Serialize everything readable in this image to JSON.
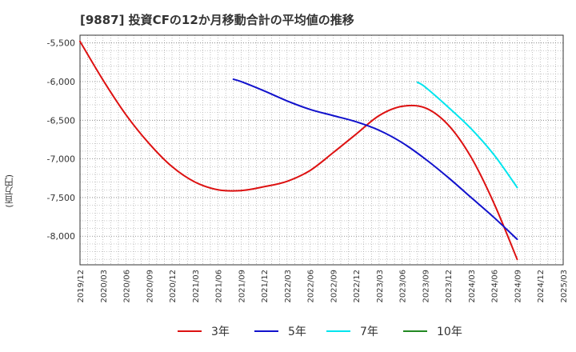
{
  "chart_data": {
    "type": "line",
    "title": "[9887]  投資CFの12か月移動合計の平均値の推移",
    "ylabel": "(百万円)",
    "xlabel": "",
    "ylim": [
      -8370,
      -5400
    ],
    "yticks": [
      -5500,
      -6000,
      -6500,
      -7000,
      -7500,
      -8000
    ],
    "ytick_labels": [
      "-5,500",
      "-6,000",
      "-6,500",
      "-7,000",
      "-7,500",
      "-8,000"
    ],
    "x_tick_labels": [
      "2019/12",
      "2020/03",
      "2020/06",
      "2020/09",
      "2020/12",
      "2021/03",
      "2021/06",
      "2021/09",
      "2021/12",
      "2022/03",
      "2022/06",
      "2022/09",
      "2022/12",
      "2023/03",
      "2023/06",
      "2023/09",
      "2023/12",
      "2024/03",
      "2024/06",
      "2024/09",
      "2024/12",
      "2025/03"
    ],
    "grid": true,
    "legend_position": "bottom",
    "series": [
      {
        "name": "3年",
        "color": "#dd1111",
        "x": [
          "2019/12",
          "2020/03",
          "2020/06",
          "2020/09",
          "2020/12",
          "2021/03",
          "2021/06",
          "2021/09",
          "2021/12",
          "2022/03",
          "2022/06",
          "2022/09",
          "2022/12",
          "2023/03",
          "2023/06",
          "2023/09",
          "2023/12",
          "2024/03",
          "2024/06",
          "2024/09"
        ],
        "values": [
          -5480,
          -5980,
          -6430,
          -6800,
          -7100,
          -7300,
          -7400,
          -7410,
          -7360,
          -7290,
          -7150,
          -6920,
          -6680,
          -6440,
          -6320,
          -6340,
          -6560,
          -6980,
          -7580,
          -8300
        ]
      },
      {
        "name": "5年",
        "color": "#1111cc",
        "x": [
          "2021/08",
          "2021/09",
          "2021/12",
          "2022/03",
          "2022/06",
          "2022/09",
          "2022/12",
          "2023/03",
          "2023/06",
          "2023/09",
          "2023/12",
          "2024/03",
          "2024/06",
          "2024/09"
        ],
        "values": [
          -5970,
          -6000,
          -6120,
          -6250,
          -6360,
          -6440,
          -6520,
          -6630,
          -6790,
          -7000,
          -7240,
          -7500,
          -7760,
          -8040
        ]
      },
      {
        "name": "7年",
        "color": "#00e5ee",
        "x": [
          "2023/08",
          "2023/09",
          "2023/12",
          "2024/03",
          "2024/06",
          "2024/09"
        ],
        "values": [
          -6010,
          -6070,
          -6330,
          -6610,
          -6950,
          -7370
        ]
      },
      {
        "name": "10年",
        "color": "#228822",
        "x": [],
        "values": []
      }
    ]
  }
}
